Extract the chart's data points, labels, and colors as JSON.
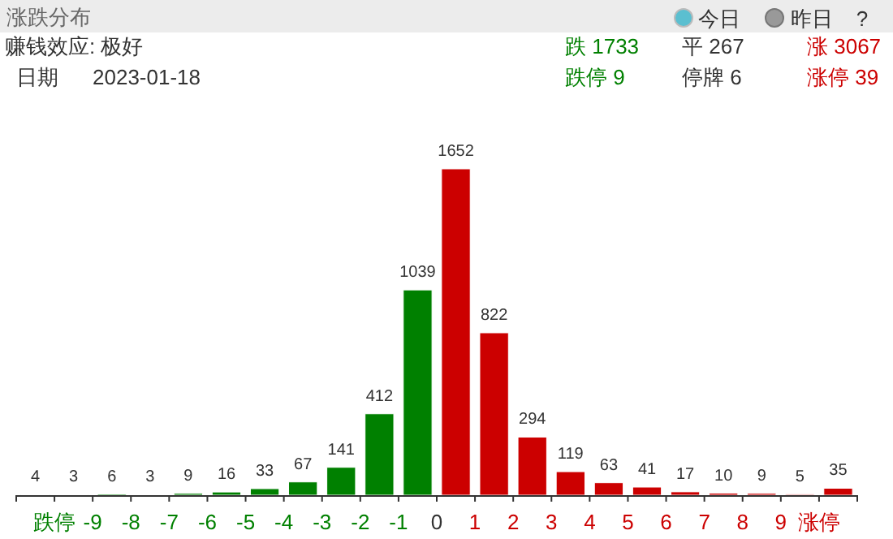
{
  "chart_data": {
    "type": "bar",
    "title": "涨跌分布",
    "annotations": [
      "今日",
      "昨日",
      "?",
      "赚钱效应:  极好",
      "日期",
      "2023-01-18",
      "跌 1733",
      "平 267",
      "涨 3067",
      "跌停 9",
      "停牌 6",
      "涨停 39"
    ],
    "x": [
      -10.5,
      -9.5,
      -8.5,
      -7.5,
      -6.5,
      -5.5,
      -4.5,
      -3.5,
      -2.5,
      -1.5,
      -0.5,
      0.5,
      1.5,
      2.5,
      3.5,
      4.5,
      5.5,
      6.5,
      7.5,
      8.5,
      9.5,
      10.5
    ],
    "values": [
      4,
      3,
      6,
      3,
      9,
      16,
      33,
      67,
      141,
      412,
      1039,
      1652,
      822,
      294,
      119,
      63,
      41,
      17,
      10,
      9,
      5,
      35
    ],
    "colors": [
      "#008000",
      "#008000",
      "#008000",
      "#008000",
      "#008000",
      "#008000",
      "#008000",
      "#008000",
      "#008000",
      "#008000",
      "#008000",
      "#cc0000",
      "#cc0000",
      "#cc0000",
      "#cc0000",
      "#cc0000",
      "#cc0000",
      "#cc0000",
      "#cc0000",
      "#cc0000",
      "#cc0000",
      "#cc0000"
    ],
    "xlim": [
      -11,
      11
    ],
    "xticks": [
      {
        "value": -11,
        "label": null
      },
      {
        "value": -10,
        "label": "跌停"
      },
      -9,
      -8,
      -7,
      -6,
      -5,
      -4,
      -3,
      -2,
      -1,
      0,
      1,
      2,
      3,
      4,
      5,
      6,
      7,
      8,
      9,
      {
        "value": 10,
        "label": "涨停"
      },
      {
        "value": 11,
        "label": null
      }
    ],
    "data_labels": true
  }
}
